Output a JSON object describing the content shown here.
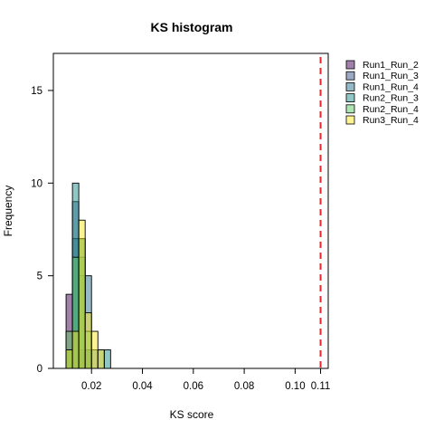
{
  "chart_data": {
    "type": "histogram",
    "title": "KS histogram",
    "xlabel": "KS score",
    "ylabel": "Frequency",
    "xlim": [
      0.005,
      0.113
    ],
    "ylim": [
      0,
      17
    ],
    "x_ticks": [
      {
        "value": 0.02,
        "label": "0.02"
      },
      {
        "value": 0.04,
        "label": "0.04"
      },
      {
        "value": 0.06,
        "label": "0.06"
      },
      {
        "value": 0.08,
        "label": "0.08"
      },
      {
        "value": 0.1,
        "label": "0.10"
      },
      {
        "value": 0.11,
        "label": "0.11"
      }
    ],
    "y_ticks": [
      0,
      5,
      10,
      15
    ],
    "bin_width": 0.0025,
    "threshold": {
      "value": 0.11,
      "color": "#e8262b",
      "style": "dashed"
    },
    "grid": false,
    "legend_position": "right",
    "series": [
      {
        "name": "Run1_Run_2",
        "color": "#440154",
        "bins": [
          [
            0.01,
            4
          ],
          [
            0.0125,
            2
          ],
          [
            0.015,
            1
          ],
          [
            0.0175,
            1
          ]
        ]
      },
      {
        "name": "Run1_Run_3",
        "color": "#3b528b",
        "bins": [
          [
            0.01,
            1
          ],
          [
            0.0125,
            9
          ],
          [
            0.015,
            7
          ],
          [
            0.0175,
            1
          ]
        ]
      },
      {
        "name": "Run1_Run_4",
        "color": "#2c728e",
        "bins": [
          [
            0.01,
            1
          ],
          [
            0.0125,
            7
          ],
          [
            0.015,
            5
          ],
          [
            0.0175,
            5
          ],
          [
            0.02,
            1
          ]
        ]
      },
      {
        "name": "Run2_Run_3",
        "color": "#21908d",
        "bins": [
          [
            0.01,
            1
          ],
          [
            0.0125,
            10
          ],
          [
            0.015,
            6
          ],
          [
            0.0175,
            1
          ],
          [
            0.0225,
            1
          ],
          [
            0.025,
            1
          ]
        ]
      },
      {
        "name": "Run2_Run_4",
        "color": "#5dc963",
        "bins": [
          [
            0.01,
            2
          ],
          [
            0.0125,
            6
          ],
          [
            0.015,
            7
          ],
          [
            0.0175,
            2
          ]
        ]
      },
      {
        "name": "Run3_Run_4",
        "color": "#fde725",
        "bins": [
          [
            0.01,
            1
          ],
          [
            0.0125,
            2
          ],
          [
            0.015,
            8
          ],
          [
            0.0175,
            3
          ],
          [
            0.02,
            2
          ],
          [
            0.0225,
            1
          ]
        ]
      }
    ]
  }
}
